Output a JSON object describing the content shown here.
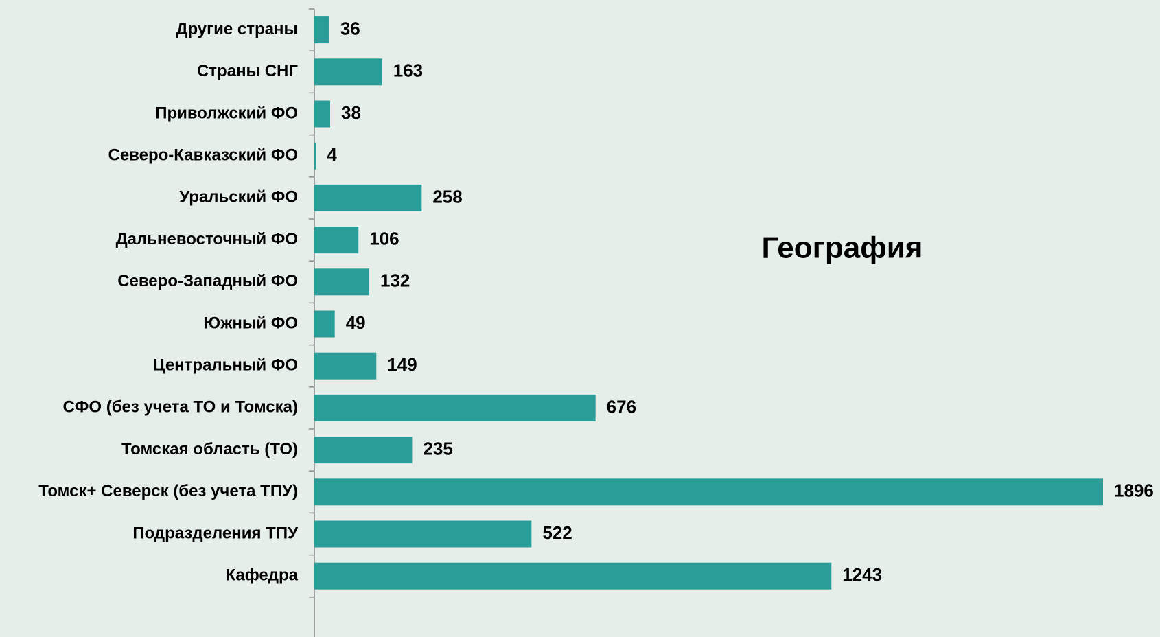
{
  "chart_data": {
    "type": "bar",
    "orientation": "horizontal",
    "title": "География",
    "categories": [
      "Другие страны",
      "Страны СНГ",
      "Приволжский ФО",
      "Северо-Кавказский ФО",
      "Уральский ФО",
      "Дальневосточный ФО",
      "Северо-Западный ФО",
      "Южный ФО",
      "Центральный ФО",
      "СФО (без учета ТО и Томска)",
      "Томская область (ТО)",
      "Томск+ Северск (без учета ТПУ)",
      "Подразделения ТПУ",
      "Кафедра"
    ],
    "values": [
      36,
      163,
      38,
      4,
      258,
      106,
      132,
      49,
      149,
      676,
      235,
      1896,
      522,
      1243
    ],
    "color": "#2a9d99"
  }
}
